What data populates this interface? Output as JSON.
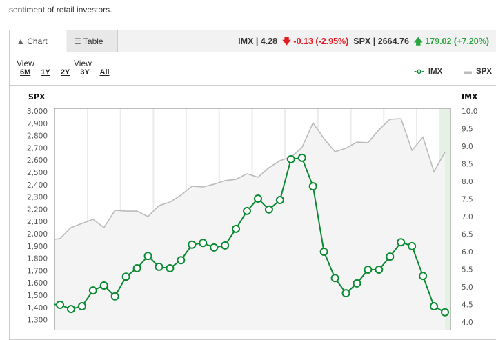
{
  "intro_text": "sentiment of retail investors.",
  "tabs": [
    {
      "label": "Chart View",
      "icon": "area-chart-icon"
    },
    {
      "label": "Table View",
      "icon": "table-icon"
    }
  ],
  "quote": {
    "imx_label": "IMX | 4.28",
    "imx_change": "-0.13 (-2.95%)",
    "spx_label": "SPX | 2664.76",
    "spx_change": "179.02 (+7.20%)",
    "down_color": "#e21b23",
    "up_color": "#2aa43c"
  },
  "ranges": [
    "6M",
    "1Y",
    "2Y",
    "3Y",
    "All"
  ],
  "selected_range": "3Y",
  "legend": [
    {
      "name": "IMX",
      "color": "#0a8a32"
    },
    {
      "name": "SPX",
      "color": "#bbbbbb"
    }
  ],
  "chart_data": {
    "type": "line",
    "left_axis": {
      "title": "SPX",
      "ticks": [
        "3,000",
        "2,900",
        "2,800",
        "2,700",
        "2,600",
        "2,500",
        "2,400",
        "2,300",
        "2,200",
        "2,100",
        "2,000",
        "1,900",
        "1,800",
        "1,700",
        "1,600",
        "1,500",
        "1,400",
        "1,300"
      ],
      "range": [
        1200,
        3000
      ]
    },
    "right_axis": {
      "title": "IMX",
      "ticks": [
        "10.0",
        "9.5",
        "9.0",
        "8.5",
        "8.0",
        "7.5",
        "7.0",
        "6.5",
        "6.0",
        "5.5",
        "5.0",
        "4.5",
        "4.0"
      ],
      "range": [
        4.0,
        10.0
      ]
    },
    "grid": "vertical",
    "series": [
      {
        "name": "IMX",
        "axis": "right",
        "color": "#0a8a32",
        "markers": true,
        "values": [
          4.49,
          4.37,
          4.45,
          4.9,
          5.04,
          4.73,
          5.29,
          5.53,
          5.88,
          5.57,
          5.53,
          5.76,
          6.2,
          6.25,
          6.12,
          6.18,
          6.65,
          7.16,
          7.51,
          7.2,
          7.47,
          8.63,
          8.67,
          7.86,
          6.0,
          5.25,
          4.82,
          5.1,
          5.49,
          5.49,
          5.86,
          6.27,
          6.16,
          5.31,
          4.45,
          4.28
        ]
      },
      {
        "name": "SPX",
        "axis": "left",
        "color": "#bbbbbb",
        "area": true,
        "values": [
          1961,
          2051,
          2084,
          2118,
          2051,
          2191,
          2185,
          2185,
          2140,
          2230,
          2258,
          2315,
          2388,
          2382,
          2404,
          2433,
          2444,
          2489,
          2461,
          2539,
          2596,
          2624,
          2702,
          2904,
          2775,
          2669,
          2697,
          2747,
          2742,
          2848,
          2933,
          2938,
          2680,
          2787,
          2506,
          2665
        ]
      }
    ]
  }
}
